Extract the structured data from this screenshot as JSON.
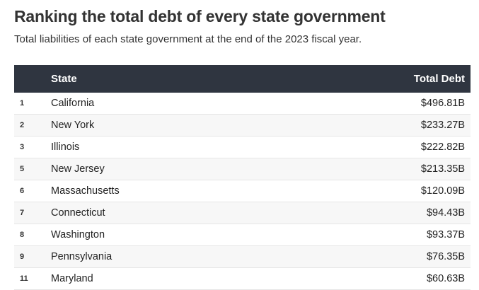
{
  "title": "Ranking the total debt of every state government",
  "subtitle": "Total liabilities of each state government at the end of the 2023 fiscal year.",
  "chart_data": {
    "type": "table",
    "columns": [
      "",
      "State",
      "Total Debt"
    ],
    "rows": [
      {
        "rank": "1",
        "state": "California",
        "debt": "$496.81B"
      },
      {
        "rank": "2",
        "state": "New York",
        "debt": "$233.27B"
      },
      {
        "rank": "3",
        "state": "Illinois",
        "debt": "$222.82B"
      },
      {
        "rank": "5",
        "state": "New Jersey",
        "debt": "$213.35B"
      },
      {
        "rank": "6",
        "state": "Massachusetts",
        "debt": "$120.09B"
      },
      {
        "rank": "7",
        "state": "Connecticut",
        "debt": "$94.43B"
      },
      {
        "rank": "8",
        "state": "Washington",
        "debt": "$93.37B"
      },
      {
        "rank": "9",
        "state": "Pennsylvania",
        "debt": "$76.35B"
      },
      {
        "rank": "11",
        "state": "Maryland",
        "debt": "$60.63B"
      }
    ]
  },
  "colors": {
    "header_bg": "#2f3540",
    "alt_row_bg": "#f7f7f7"
  }
}
